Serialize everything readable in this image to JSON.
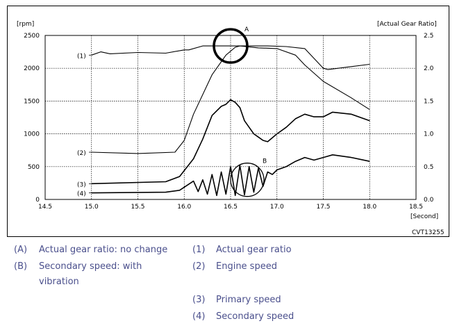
{
  "chart_data": {
    "type": "line",
    "figure_code": "CVT13255",
    "xlabel": "[Second]",
    "ylabel_left": "[rpm]",
    "ylabel_right": "[Actual Gear Ratio]",
    "xlim": [
      14.5,
      18.5
    ],
    "ylim_left": [
      0,
      2500
    ],
    "ylim_right": [
      0,
      2.5
    ],
    "x_ticks": [
      "14.5",
      "15.0",
      "15.5",
      "16.0",
      "16.5",
      "17.0",
      "17.5",
      "18.0",
      "18.5"
    ],
    "y_ticks_left": [
      "0",
      "500",
      "1000",
      "1500",
      "2000",
      "2500"
    ],
    "y_ticks_right": [
      "0.0",
      "0.5",
      "1.0",
      "1.5",
      "2.0",
      "2.5"
    ],
    "grid": true,
    "series": [
      {
        "name": "Actual gear ratio",
        "tag": "(1)",
        "axis": "right",
        "x": [
          15.0,
          15.1,
          15.2,
          15.5,
          15.8,
          16.0,
          16.05,
          16.2,
          16.5,
          16.9,
          17.1,
          17.3,
          17.4,
          17.5,
          17.55,
          18.0
        ],
        "y": [
          2.2,
          2.25,
          2.22,
          2.24,
          2.23,
          2.28,
          2.28,
          2.34,
          2.34,
          2.34,
          2.33,
          2.3,
          2.15,
          2.0,
          1.98,
          2.06
        ]
      },
      {
        "name": "Engine speed",
        "tag": "(2)",
        "axis": "left",
        "x": [
          15.0,
          15.5,
          15.9,
          16.0,
          16.1,
          16.3,
          16.45,
          16.55,
          16.6,
          16.8,
          17.0,
          17.2,
          17.3,
          17.5,
          17.8,
          18.0
        ],
        "y": [
          720,
          700,
          720,
          900,
          1300,
          1900,
          2200,
          2320,
          2340,
          2310,
          2300,
          2200,
          2050,
          1800,
          1550,
          1370
        ]
      },
      {
        "name": "Primary speed",
        "tag": "(3)",
        "axis": "left",
        "x": [
          15.0,
          15.8,
          15.95,
          16.1,
          16.2,
          16.3,
          16.4,
          16.45,
          16.5,
          16.55,
          16.6,
          16.65,
          16.7,
          16.75,
          16.8,
          16.85,
          16.9,
          17.0,
          17.1,
          17.2,
          17.3,
          17.4,
          17.5,
          17.6,
          17.8,
          18.0
        ],
        "y": [
          240,
          270,
          350,
          620,
          920,
          1280,
          1420,
          1450,
          1520,
          1480,
          1400,
          1200,
          1100,
          1000,
          950,
          900,
          880,
          1000,
          1100,
          1230,
          1300,
          1260,
          1260,
          1330,
          1300,
          1200
        ]
      },
      {
        "name": "Secondary speed",
        "tag": "(4)",
        "axis": "left",
        "x": [
          15.0,
          15.8,
          15.95,
          16.1,
          16.15,
          16.2,
          16.25,
          16.3,
          16.35,
          16.4,
          16.45,
          16.5,
          16.55,
          16.6,
          16.65,
          16.7,
          16.75,
          16.8,
          16.85,
          16.9,
          16.95,
          17.0,
          17.1,
          17.2,
          17.3,
          17.4,
          17.5,
          17.6,
          17.8,
          18.0
        ],
        "y": [
          100,
          110,
          140,
          280,
          120,
          300,
          80,
          380,
          60,
          420,
          80,
          500,
          60,
          520,
          70,
          500,
          110,
          480,
          200,
          420,
          380,
          450,
          500,
          580,
          640,
          600,
          640,
          680,
          640,
          580
        ]
      }
    ],
    "annotations": [
      {
        "label": "A",
        "x": 16.5,
        "y_right": 2.34,
        "note": "Actual gear ratio: no change"
      },
      {
        "label": "B",
        "x": 16.68,
        "y_left": 300,
        "note": "Secondary speed: with vibration"
      }
    ]
  },
  "legend": {
    "left": [
      {
        "key": "(A)",
        "text": "Actual gear ratio: no change"
      },
      {
        "key": "(B)",
        "text": "Secondary speed: with"
      },
      {
        "key": "",
        "text": "vibration"
      }
    ],
    "right": [
      {
        "key": "(1)",
        "text": "Actual gear ratio"
      },
      {
        "key": "(2)",
        "text": "Engine speed"
      },
      {
        "key": "(3)",
        "text": "Primary speed"
      },
      {
        "key": "(4)",
        "text": "Secondary speed"
      }
    ]
  }
}
